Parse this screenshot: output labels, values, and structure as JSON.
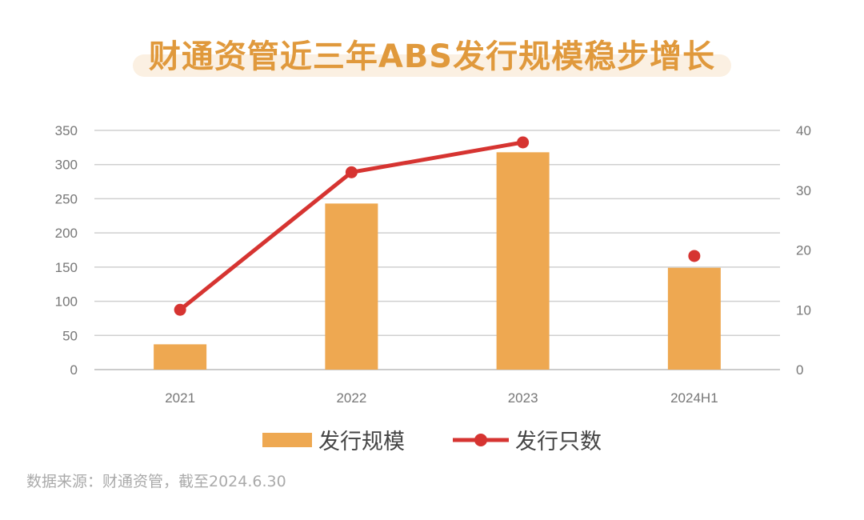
{
  "title": "财通资管近三年ABS发行规模稳步增长",
  "source": "数据来源：财通资管，截至2024.6.30",
  "chart_data": {
    "type": "bar+line",
    "categories": [
      "2021",
      "2022",
      "2023",
      "2024H1"
    ],
    "series": [
      {
        "name": "发行规模",
        "type": "bar",
        "axis": "left",
        "color": "#eea851",
        "values": [
          37,
          243,
          318,
          149
        ]
      },
      {
        "name": "发行只数",
        "type": "line",
        "axis": "right",
        "color": "#d63431",
        "values": [
          10,
          33,
          38,
          19
        ],
        "connected": [
          true,
          true,
          true,
          false
        ]
      }
    ],
    "left_ylim": [
      0,
      350
    ],
    "left_ticks": [
      0,
      50,
      100,
      150,
      200,
      250,
      300,
      350
    ],
    "right_ylim": [
      0,
      40
    ],
    "right_ticks": [
      0,
      10,
      20,
      30,
      40
    ],
    "grid": true,
    "legend": "bottom"
  }
}
